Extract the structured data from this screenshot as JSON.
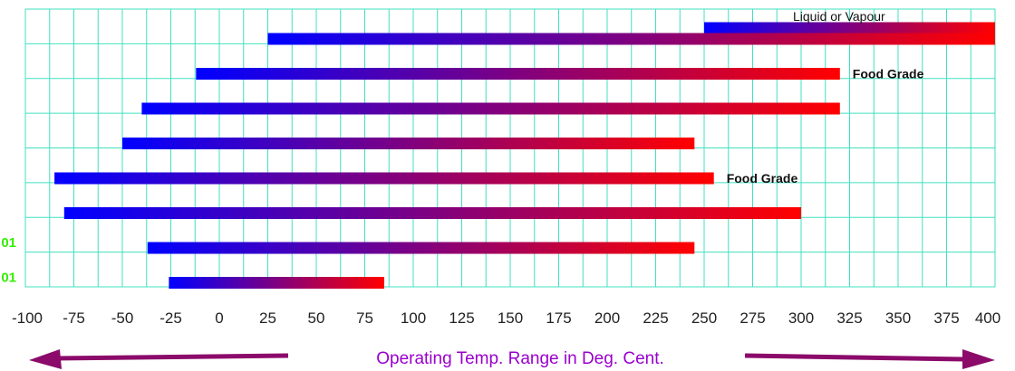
{
  "chart_data": {
    "type": "bar",
    "orientation": "horizontal-range",
    "xlim": [
      -100,
      400
    ],
    "x_ticks": [
      "-100",
      "-75",
      "-50",
      "-25",
      "0",
      "25",
      "50",
      "75",
      "100",
      "125",
      "150",
      "175",
      "200",
      "225",
      "250",
      "275",
      "300",
      "325",
      "350",
      "375",
      "400"
    ],
    "grid": true,
    "xlabel": "Operating Temp. Range in Deg. Cent.",
    "ranges": [
      {
        "min": 25,
        "max": 400
      },
      {
        "min": -12,
        "max": 320
      },
      {
        "min": -40,
        "max": 320
      },
      {
        "min": -50,
        "max": 245
      },
      {
        "min": -85,
        "max": 255
      },
      {
        "min": -80,
        "max": 300
      },
      {
        "min": -37,
        "max": 245
      },
      {
        "min": -26,
        "max": 85
      }
    ],
    "extra_bar": {
      "min": 250,
      "max": 400,
      "row": 0
    },
    "annotations": [
      {
        "text": "Liquid or Vapour",
        "row": 0,
        "bold": false
      },
      {
        "text": "Food Grade",
        "row": 1,
        "bold": true
      },
      {
        "text": "Food Grade",
        "row": 4,
        "bold": true
      }
    ],
    "left_labels": [
      {
        "text": "01",
        "row": 6
      },
      {
        "text": "01",
        "row": 7
      }
    ],
    "colors": {
      "grid": "#40e0c0",
      "bar_start": "#0000ff",
      "bar_end": "#ff0000",
      "xlabel": "#9900cc",
      "arrow": "#8b0a6a",
      "left_label": "#33ee00"
    }
  }
}
